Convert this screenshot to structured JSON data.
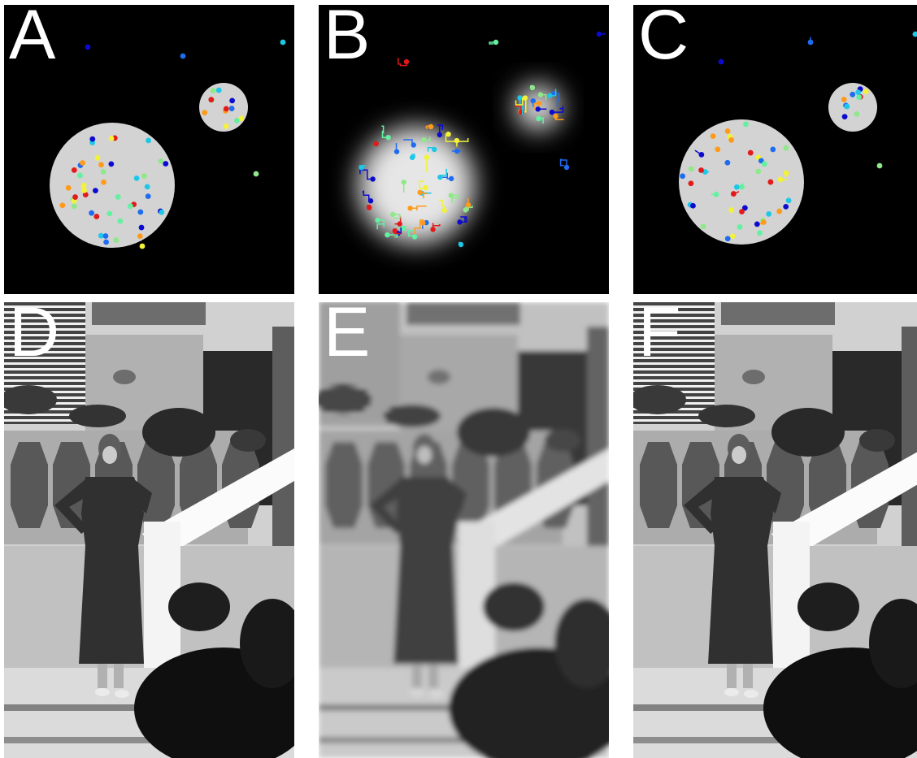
{
  "panels": {
    "a": {
      "label": "A"
    },
    "b": {
      "label": "B"
    },
    "c": {
      "label": "C"
    },
    "d": {
      "label": "D"
    },
    "e": {
      "label": "E"
    },
    "f": {
      "label": "F"
    }
  },
  "colors": {
    "background": "#000000",
    "disk": "#d3d3d3",
    "label": "#ffffff",
    "dot_palette": [
      "#0b0bd0",
      "#1f6cf0",
      "#1fc7e6",
      "#8fe88a",
      "#f2f23a",
      "#ff9a1a",
      "#e21a1a",
      "#64f0a0"
    ]
  }
}
